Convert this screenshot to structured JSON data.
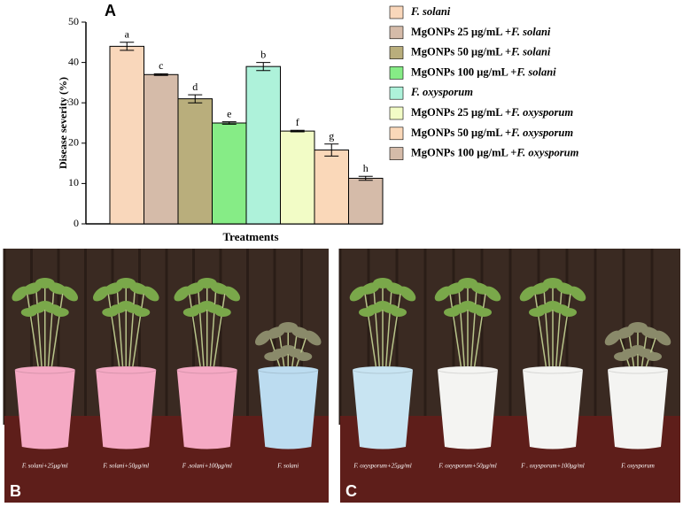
{
  "chart_data": {
    "type": "bar",
    "panel": "A",
    "ylabel": "Disease severity (%)",
    "xlabel": "Treatments",
    "categories": [
      "F. solani",
      "MgONPs 25 μg/mL +F. solani",
      "MgONPs 50 μg/mL +F. solani",
      "MgONPs 100 μg/mL +F. solani",
      "F. oxysporum",
      "MgONPs 25 μg/mL +F. oxysporum",
      "MgONPs 50 μg/mL +F. oxysporum",
      "MgONPs 100 μg/mL +F. oxysporum"
    ],
    "values": [
      44,
      37,
      31,
      25,
      39,
      23,
      18.3,
      11.3
    ],
    "errors": [
      1,
      0.2,
      1,
      0.3,
      1,
      0.2,
      1.5,
      0.5
    ],
    "letters": [
      "a",
      "c",
      "d",
      "e",
      "b",
      "f",
      "g",
      "h"
    ],
    "colors": [
      "#f9d7bb",
      "#d5bba9",
      "#b9ae7c",
      "#86ec86",
      "#aef2da",
      "#f2fcc6",
      "#fad8b9",
      "#d5bba9"
    ],
    "ylim": [
      0,
      50
    ],
    "yticks": [
      0,
      10,
      20,
      30,
      40,
      50
    ],
    "legend": "right"
  },
  "photos": [
    {
      "panel": "B",
      "pot_labels": [
        "F. solani+25μg/ml",
        "F. solani+50μg/ml",
        "F .solani+100μg/ml",
        "F. solani"
      ]
    },
    {
      "panel": "C",
      "pot_labels": [
        "F. oxysporum+25μg/ml",
        "F. oxysporum+50μg/ml",
        "F . oxysporum+100μg/ml",
        "F. oxysporum"
      ]
    }
  ]
}
